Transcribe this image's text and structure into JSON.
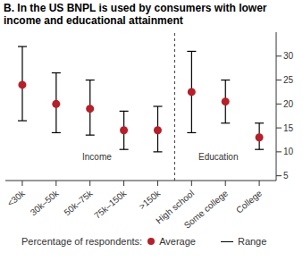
{
  "chart_data": {
    "type": "range",
    "title": "B. In the US BNPL is used by consumers with lower income and educational attainment",
    "y_label": "Percentage of respondents:",
    "annotations": [
      "Income",
      "Education"
    ],
    "categories": [
      "<30k",
      "30k–50k",
      "50k–75k",
      "75k–150k",
      ">150k",
      "High school",
      "Some college",
      "College"
    ],
    "series": [
      {
        "name": "Average",
        "color": "#b5202a",
        "marker": "circle",
        "values": [
          24,
          20,
          19,
          14.5,
          14.5,
          22.5,
          20.5,
          13
        ]
      },
      {
        "name": "Range",
        "color": "#000000",
        "low": [
          16.5,
          14,
          13.5,
          10.5,
          10,
          14,
          16,
          10.5
        ],
        "high": [
          32,
          26.5,
          25,
          18.5,
          19.5,
          31,
          25,
          16
        ]
      }
    ],
    "ylim": [
      4,
      35
    ],
    "yticks": [
      5,
      10,
      15,
      20,
      25,
      30
    ]
  }
}
